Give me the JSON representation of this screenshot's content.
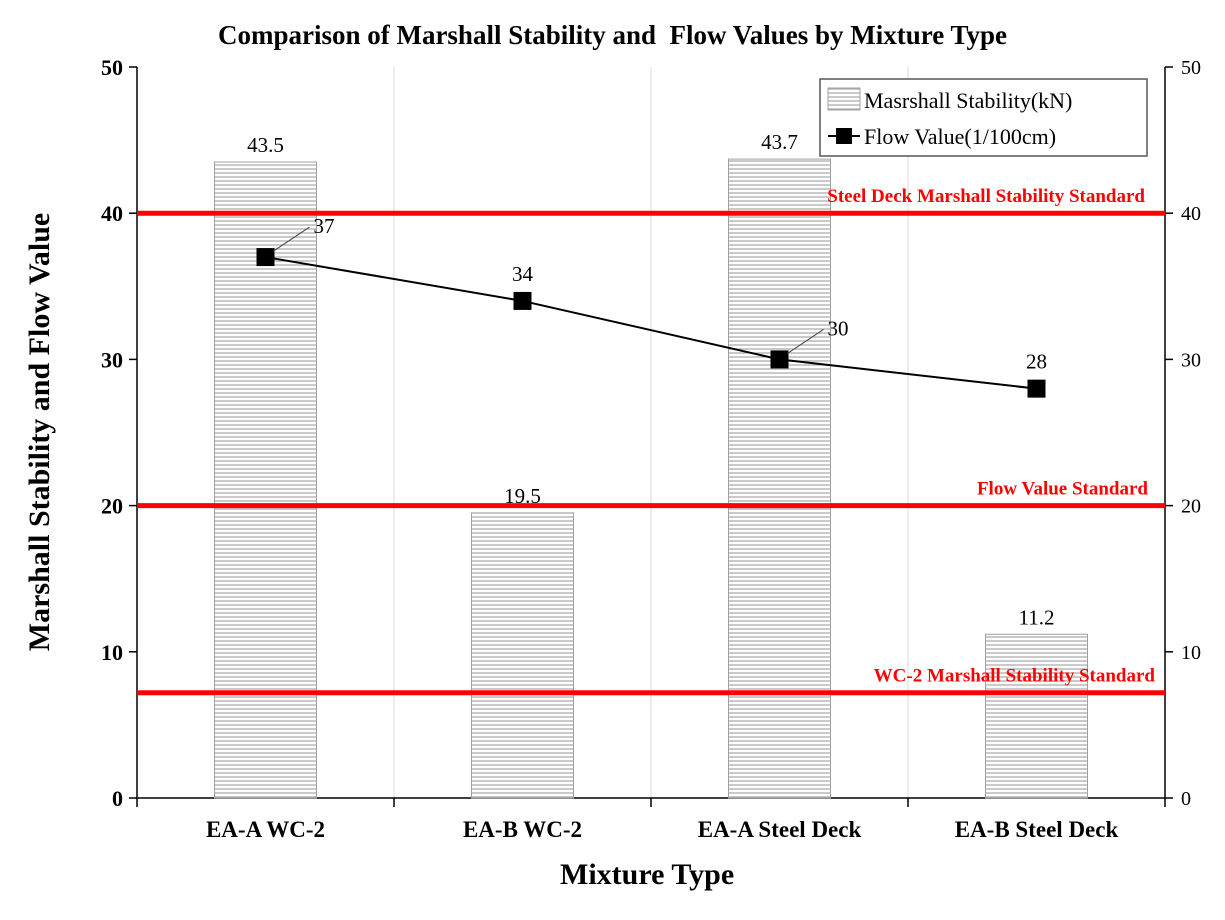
{
  "chart_data": {
    "type": "bar",
    "title": "Comparison of Marshall Stability and  Flow Values by Mixture Type",
    "xlabel": "Mixture Type",
    "ylabel": "Marshall Stability and Flow Value",
    "ylim": [
      0,
      50
    ],
    "y_ticks": [
      0,
      10,
      20,
      30,
      40,
      50
    ],
    "y2lim": [
      0,
      50
    ],
    "y2_ticks": [
      0,
      10,
      20,
      30,
      40,
      50
    ],
    "categories": [
      "EA-A WC-2",
      "EA-B WC-2",
      "EA-A Steel Deck",
      "EA-B Steel Deck"
    ],
    "series": [
      {
        "name": "Masrshall Stability(kN)",
        "kind": "bar",
        "values": [
          43.5,
          19.5,
          43.7,
          11.2
        ],
        "labels": [
          "43.5",
          "19.5",
          "43.7",
          "11.2"
        ]
      },
      {
        "name": "Flow Value(1/100cm)",
        "kind": "line",
        "marker": "square",
        "values": [
          37,
          34,
          30,
          28
        ],
        "labels": [
          "37",
          "34",
          "30",
          "28"
        ]
      }
    ],
    "reference_lines": [
      {
        "label": "Steel Deck Marshall  Stability  Standard",
        "value": 40
      },
      {
        "label": "Flow Value Standard",
        "value": 20
      },
      {
        "label": "WC-2  Marshall  Stability  Standard",
        "value": 7.2
      }
    ],
    "legend_position": "top-right",
    "grid": "vertical",
    "colors": {
      "bar_fill": "#ffffff",
      "bar_hatch": "#a8a8a8",
      "bar_edge": "#a0a0a0",
      "line": "#000000",
      "reference": "#ff0000",
      "grid": "#d9d9d9"
    }
  }
}
